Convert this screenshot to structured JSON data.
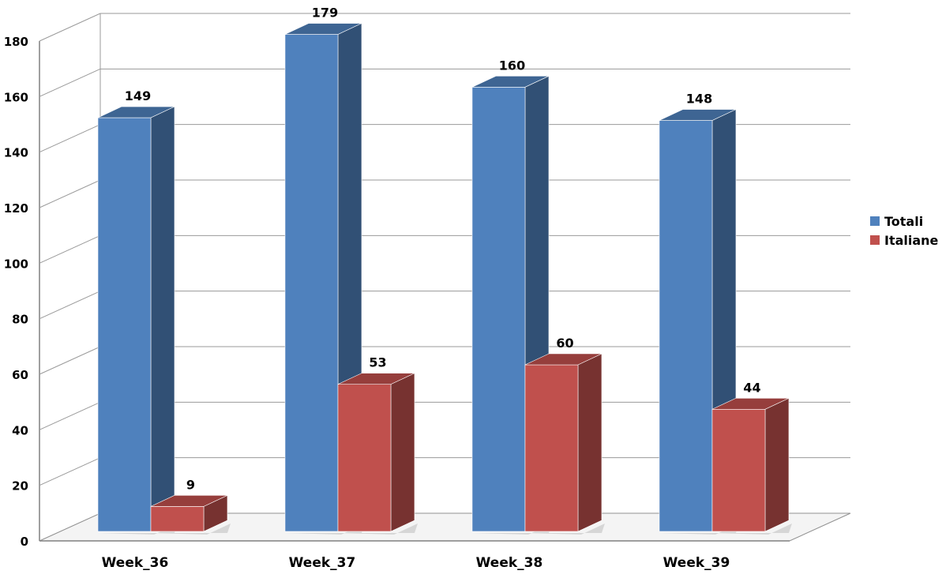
{
  "chart_data": {
    "type": "bar",
    "categories": [
      "Week_36",
      "Week_37",
      "Week_38",
      "Week_39"
    ],
    "series": [
      {
        "name": "Totali",
        "values": [
          149,
          179,
          160,
          148
        ],
        "color": "#4F81BD"
      },
      {
        "name": "Italiane",
        "values": [
          9,
          53,
          60,
          44
        ],
        "color": "#C0504D"
      }
    ],
    "yticks": [
      "0",
      "20",
      "40",
      "60",
      "80",
      "100",
      "120",
      "140",
      "160",
      "180"
    ],
    "ylim": [
      0,
      180
    ],
    "grid": true,
    "legend_position": "right",
    "style": "3d-column"
  }
}
